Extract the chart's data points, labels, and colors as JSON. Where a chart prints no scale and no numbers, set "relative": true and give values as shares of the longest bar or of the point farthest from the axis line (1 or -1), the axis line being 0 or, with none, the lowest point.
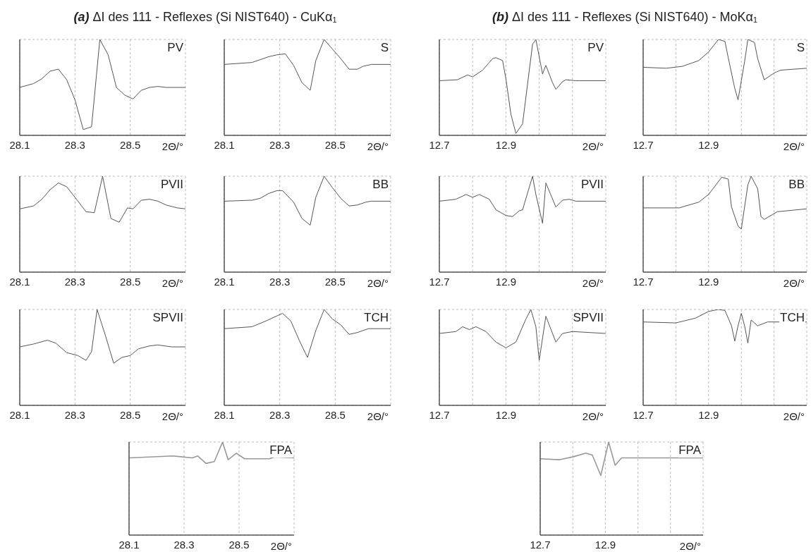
{
  "chart_data": [
    {
      "type": "line",
      "title": "PV",
      "annotations": [
        "(a) ΔI des 111 - Reflexes (Si NIST640) - CuKα₁"
      ],
      "xlabel": "2Θ/°",
      "relative": true,
      "grid": true,
      "color": "#555555",
      "xlim": [
        28.1,
        28.7
      ],
      "xticks": [
        28.1,
        28.3,
        28.5,
        {
          "value": 28.7,
          "label": null
        }
      ],
      "x": [
        28.1,
        28.15,
        28.18,
        28.21,
        28.24,
        28.27,
        28.3,
        28.33,
        28.36,
        28.39,
        28.42,
        28.45,
        28.48,
        28.51,
        28.54,
        28.57,
        28.6,
        28.63,
        28.7
      ],
      "values": [
        0.5,
        0.54,
        0.59,
        0.67,
        0.69,
        0.58,
        0.37,
        0.06,
        0.09,
        1,
        0.84,
        0.5,
        0.42,
        0.38,
        0.47,
        0.5,
        0.51,
        0.5,
        0.5
      ]
    },
    {
      "type": "line",
      "title": "S",
      "xlabel": "2Θ/°",
      "relative": true,
      "grid": true,
      "color": "#555555",
      "xlim": [
        28.1,
        28.7
      ],
      "xticks": [
        28.1,
        28.3,
        28.5,
        {
          "value": 28.7,
          "label": null
        }
      ],
      "x": [
        28.1,
        28.2,
        28.26,
        28.29,
        28.32,
        28.35,
        28.38,
        28.41,
        28.43,
        28.46,
        28.49,
        28.52,
        28.55,
        28.58,
        28.6,
        28.63,
        28.7
      ],
      "values": [
        0.74,
        0.76,
        0.82,
        0.84,
        0.85,
        0.73,
        0.55,
        0.47,
        0.78,
        1,
        0.9,
        0.8,
        0.69,
        0.69,
        0.72,
        0.74,
        0.74
      ]
    },
    {
      "type": "line",
      "title": "PVII",
      "xlabel": "2Θ/°",
      "relative": true,
      "grid": true,
      "color": "#555555",
      "xlim": [
        28.1,
        28.7
      ],
      "xticks": [
        28.1,
        28.3,
        28.5,
        {
          "value": 28.7,
          "label": null
        }
      ],
      "x": [
        28.1,
        28.15,
        28.18,
        28.21,
        28.24,
        28.27,
        28.3,
        28.34,
        28.37,
        28.4,
        28.43,
        28.46,
        28.49,
        28.51,
        28.54,
        28.57,
        28.6,
        28.63,
        28.67,
        28.7
      ],
      "values": [
        0.66,
        0.69,
        0.76,
        0.86,
        0.93,
        0.89,
        0.78,
        0.63,
        0.62,
        1,
        0.56,
        0.52,
        0.67,
        0.66,
        0.75,
        0.76,
        0.74,
        0.7,
        0.67,
        0.66
      ]
    },
    {
      "type": "line",
      "title": "BB",
      "xlabel": "2Θ/°",
      "relative": true,
      "grid": true,
      "color": "#555555",
      "xlim": [
        28.1,
        28.7
      ],
      "xticks": [
        28.1,
        28.3,
        28.5,
        {
          "value": 28.7,
          "label": null
        }
      ],
      "x": [
        28.1,
        28.2,
        28.23,
        28.26,
        28.29,
        28.31,
        28.35,
        28.38,
        28.41,
        28.43,
        28.46,
        28.49,
        28.52,
        28.55,
        28.58,
        28.61,
        28.63,
        28.7
      ],
      "values": [
        0.74,
        0.75,
        0.77,
        0.82,
        0.85,
        0.85,
        0.73,
        0.56,
        0.49,
        0.78,
        1,
        0.88,
        0.77,
        0.69,
        0.7,
        0.73,
        0.74,
        0.74
      ]
    },
    {
      "type": "line",
      "title": "SPVII",
      "xlabel": "2Θ/°",
      "relative": true,
      "grid": true,
      "color": "#555555",
      "xlim": [
        28.1,
        28.7
      ],
      "xticks": [
        28.1,
        28.3,
        28.5,
        {
          "value": 28.7,
          "label": null
        }
      ],
      "x": [
        28.1,
        28.15,
        28.2,
        28.23,
        28.27,
        28.31,
        28.34,
        28.36,
        28.38,
        28.41,
        28.44,
        28.47,
        28.5,
        28.53,
        28.57,
        28.6,
        28.65,
        28.7
      ],
      "values": [
        0.61,
        0.64,
        0.68,
        0.65,
        0.55,
        0.52,
        0.47,
        0.56,
        1,
        0.73,
        0.44,
        0.5,
        0.52,
        0.59,
        0.62,
        0.63,
        0.61,
        0.61
      ]
    },
    {
      "type": "line",
      "title": "TCH",
      "xlabel": "2Θ/°",
      "relative": true,
      "grid": true,
      "color": "#555555",
      "xlim": [
        28.1,
        28.7
      ],
      "xticks": [
        28.1,
        28.3,
        28.5,
        {
          "value": 28.7,
          "label": null
        }
      ],
      "x": [
        28.1,
        28.2,
        28.25,
        28.31,
        28.34,
        28.37,
        28.4,
        28.43,
        28.46,
        28.49,
        28.52,
        28.55,
        28.58,
        28.62,
        28.7
      ],
      "values": [
        0.8,
        0.82,
        0.88,
        0.96,
        0.88,
        0.68,
        0.5,
        0.78,
        1,
        0.9,
        0.84,
        0.74,
        0.76,
        0.8,
        0.8
      ]
    },
    {
      "type": "line",
      "title": "FPA",
      "xlabel": "2Θ/°",
      "relative": true,
      "grid": true,
      "color": "#999999",
      "xlim": [
        28.1,
        28.7
      ],
      "xticks": [
        28.1,
        28.3,
        28.5,
        {
          "value": 28.7,
          "label": null
        }
      ],
      "x": [
        28.1,
        28.26,
        28.33,
        28.35,
        28.38,
        28.41,
        28.44,
        28.46,
        28.49,
        28.52,
        28.61,
        28.63,
        28.7
      ],
      "values": [
        0.83,
        0.85,
        0.83,
        0.85,
        0.77,
        0.79,
        1,
        0.81,
        0.88,
        0.82,
        0.82,
        0.84,
        0.83
      ]
    },
    {
      "type": "line",
      "title": "PV",
      "annotations": [
        "(b) ΔI des 111 - Reflexes (Si NIST640) - MoKα₁"
      ],
      "xlabel": "2Θ/°",
      "relative": true,
      "grid": true,
      "color": "#555555",
      "xlim": [
        12.7,
        13.2
      ],
      "xticks": [
        12.7,
        {
          "value": 12.8,
          "label": null
        },
        12.9,
        {
          "value": 13.0,
          "label": null
        },
        {
          "value": 13.1,
          "label": null
        },
        {
          "value": 13.2,
          "label": null
        }
      ],
      "x": [
        12.7,
        12.754,
        12.785,
        12.8,
        12.83,
        12.86,
        12.87,
        12.89,
        12.9,
        12.915,
        12.93,
        12.95,
        12.98,
        12.99,
        13.01,
        13.02,
        13.04,
        13.05,
        13.07,
        13.08,
        13.11,
        13.12,
        13.2
      ],
      "values": [
        0.57,
        0.58,
        0.63,
        0.61,
        0.68,
        0.8,
        0.81,
        0.78,
        0.59,
        0.22,
        0.02,
        0.12,
        0.95,
        1,
        0.64,
        0.73,
        0.55,
        0.48,
        0.56,
        0.58,
        0.57,
        0.57,
        0.57
      ]
    },
    {
      "type": "line",
      "title": "S",
      "xlabel": "2Θ/°",
      "relative": true,
      "grid": true,
      "color": "#555555",
      "xlim": [
        12.7,
        13.2
      ],
      "xticks": [
        12.7,
        {
          "value": 12.8,
          "label": null
        },
        12.9,
        {
          "value": 13.0,
          "label": null
        },
        {
          "value": 13.1,
          "label": null
        },
        {
          "value": 13.2,
          "label": null
        }
      ],
      "x": [
        12.7,
        12.77,
        12.82,
        12.87,
        12.9,
        12.93,
        12.95,
        12.96,
        12.98,
        12.99,
        13.01,
        13.02,
        13.04,
        13.05,
        13.07,
        13.1,
        13.12,
        13.2
      ],
      "values": [
        0.71,
        0.7,
        0.72,
        0.78,
        0.87,
        1,
        0.98,
        0.81,
        0.49,
        0.37,
        0.77,
        1,
        0.97,
        0.8,
        0.58,
        0.65,
        0.68,
        0.7
      ]
    },
    {
      "type": "line",
      "title": "PVII",
      "xlabel": "2Θ/°",
      "relative": true,
      "grid": true,
      "color": "#555555",
      "xlim": [
        12.7,
        13.2
      ],
      "xticks": [
        12.7,
        {
          "value": 12.8,
          "label": null
        },
        12.9,
        {
          "value": 13.0,
          "label": null
        },
        {
          "value": 13.1,
          "label": null
        },
        {
          "value": 13.2,
          "label": null
        }
      ],
      "x": [
        12.7,
        12.75,
        12.78,
        12.8,
        12.82,
        12.85,
        12.87,
        12.9,
        12.92,
        12.94,
        12.95,
        12.98,
        12.99,
        13.01,
        13.02,
        13.05,
        13.07,
        13.09,
        13.11,
        13.2
      ],
      "values": [
        0.74,
        0.76,
        0.81,
        0.78,
        0.81,
        0.76,
        0.65,
        0.59,
        0.58,
        0.64,
        0.65,
        1,
        0.81,
        0.51,
        0.93,
        0.68,
        0.75,
        0.76,
        0.74,
        0.74
      ]
    },
    {
      "type": "line",
      "title": "BB",
      "xlabel": "2Θ/°",
      "relative": true,
      "grid": true,
      "color": "#555555",
      "xlim": [
        12.7,
        13.2
      ],
      "xticks": [
        12.7,
        {
          "value": 12.8,
          "label": null
        },
        12.9,
        {
          "value": 13.0,
          "label": null
        },
        {
          "value": 13.1,
          "label": null
        },
        {
          "value": 13.2,
          "label": null
        }
      ],
      "x": [
        12.7,
        12.81,
        12.84,
        12.87,
        12.9,
        12.94,
        12.96,
        12.97,
        12.99,
        13.0,
        13.02,
        13.03,
        13.05,
        13.06,
        13.07,
        13.11,
        13.2
      ],
      "values": [
        0.67,
        0.67,
        0.7,
        0.73,
        0.81,
        0.99,
        0.97,
        0.68,
        0.48,
        0.45,
        0.91,
        1,
        0.87,
        0.58,
        0.55,
        0.63,
        0.66
      ]
    },
    {
      "type": "line",
      "title": "SPVII",
      "xlabel": "2Θ/°",
      "relative": true,
      "grid": true,
      "color": "#555555",
      "xlim": [
        12.7,
        13.2
      ],
      "xticks": [
        12.7,
        {
          "value": 12.8,
          "label": null
        },
        12.9,
        {
          "value": 13.0,
          "label": null
        },
        {
          "value": 13.1,
          "label": null
        },
        {
          "value": 13.2,
          "label": null
        }
      ],
      "x": [
        12.7,
        12.75,
        12.77,
        12.79,
        12.81,
        12.84,
        12.87,
        12.9,
        12.93,
        12.96,
        12.975,
        12.99,
        13.0,
        13.02,
        13.05,
        13.07,
        13.1,
        13.2
      ],
      "values": [
        0.75,
        0.77,
        0.82,
        0.79,
        0.82,
        0.77,
        0.66,
        0.6,
        0.66,
        0.9,
        1,
        0.82,
        0.47,
        0.93,
        0.66,
        0.75,
        0.77,
        0.75
      ]
    },
    {
      "type": "line",
      "title": "TCH",
      "xlabel": "2Θ/°",
      "relative": true,
      "grid": true,
      "color": "#555555",
      "xlim": [
        12.7,
        13.2
      ],
      "xticks": [
        12.7,
        {
          "value": 12.8,
          "label": null
        },
        12.9,
        {
          "value": 13.0,
          "label": null
        },
        {
          "value": 13.1,
          "label": null
        },
        {
          "value": 13.2,
          "label": null
        }
      ],
      "x": [
        12.7,
        12.8,
        12.86,
        12.9,
        12.93,
        12.95,
        12.97,
        12.98,
        12.99,
        13.0,
        13.01,
        13.02,
        13.03,
        13.05,
        13.08,
        13.2
      ],
      "values": [
        0.87,
        0.86,
        0.91,
        0.98,
        1,
        0.99,
        0.83,
        0.67,
        0.83,
        0.96,
        0.83,
        0.65,
        0.89,
        0.83,
        0.87,
        0.87
      ]
    },
    {
      "type": "line",
      "title": "FPA",
      "xlabel": "2Θ/°",
      "relative": true,
      "grid": true,
      "color": "#999999",
      "xlim": [
        12.7,
        13.2
      ],
      "xticks": [
        12.7,
        {
          "value": 12.8,
          "label": null
        },
        12.9,
        {
          "value": 13.0,
          "label": null
        },
        {
          "value": 13.1,
          "label": null
        },
        {
          "value": 13.2,
          "label": null
        }
      ],
      "x": [
        12.7,
        12.76,
        12.8,
        12.84,
        12.86,
        12.886,
        12.91,
        12.93,
        12.95,
        13.0,
        13.2
      ],
      "values": [
        0.82,
        0.81,
        0.84,
        0.88,
        0.86,
        0.64,
        1,
        0.75,
        0.83,
        0.83,
        0.83
      ]
    }
  ]
}
